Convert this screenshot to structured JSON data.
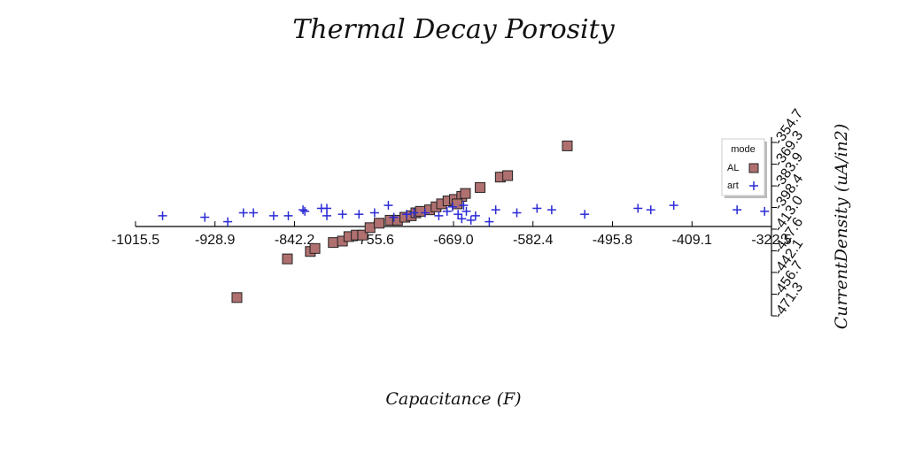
{
  "chart_data": {
    "type": "scatter",
    "title": "Thermal Decay Porosity",
    "xlabel": "Capacitance (F)",
    "ylabel": "CurrentDensity (uA/in2)",
    "xlim": [
      -1015.5,
      -322.5
    ],
    "ylim": [
      -471.3,
      -354.7
    ],
    "x_ticks": [
      "-1015.5",
      "-928.9",
      "-842.2",
      "-755.6",
      "-669.0",
      "-582.4",
      "-495.8",
      "-409.1",
      "-322.5"
    ],
    "y_ticks": [
      "-354.7",
      "-369.3",
      "-383.9",
      "-398.4",
      "-413.0",
      "-427.6",
      "-442.1",
      "-456.7",
      "-471.3"
    ],
    "legend": {
      "title": "mode",
      "position": "top-right"
    },
    "grid": false,
    "series": [
      {
        "name": "AL",
        "marker": "square",
        "color": "#b07070",
        "points": [
          [
            -905.0,
            -459.0
          ],
          [
            -850.0,
            -433.0
          ],
          [
            -825.0,
            -428.0
          ],
          [
            -820.0,
            -426.0
          ],
          [
            -800.0,
            -422.0
          ],
          [
            -790.0,
            -421.0
          ],
          [
            -783.0,
            -418.0
          ],
          [
            -775.0,
            -417.0
          ],
          [
            -768.0,
            -417.0
          ],
          [
            -760.0,
            -412.0
          ],
          [
            -750.0,
            -409.0
          ],
          [
            -738.0,
            -407.0
          ],
          [
            -730.0,
            -407.0
          ],
          [
            -722.0,
            -405.0
          ],
          [
            -715.0,
            -404.0
          ],
          [
            -710.0,
            -402.0
          ],
          [
            -705.0,
            -401.0
          ],
          [
            -695.0,
            -400.0
          ],
          [
            -688.0,
            -398.0
          ],
          [
            -682.0,
            -396.0
          ],
          [
            -675.0,
            -394.0
          ],
          [
            -668.0,
            -393.0
          ],
          [
            -660.0,
            -391.0
          ],
          [
            -656.0,
            -389.0
          ],
          [
            -665.0,
            -396.0
          ],
          [
            -640.0,
            -385.0
          ],
          [
            -618.0,
            -378.0
          ],
          [
            -610.0,
            -377.0
          ],
          [
            -545.0,
            -357.0
          ]
        ]
      },
      {
        "name": "art",
        "marker": "plus",
        "color": "#2b2bd6",
        "points": [
          [
            -986.0,
            -404.0
          ],
          [
            -940.0,
            -405.0
          ],
          [
            -915.0,
            -408.0
          ],
          [
            -898.0,
            -402.0
          ],
          [
            -887.0,
            -402.0
          ],
          [
            -865.0,
            -404.0
          ],
          [
            -849.0,
            -404.0
          ],
          [
            -833.0,
            -400.0
          ],
          [
            -831.0,
            -401.0
          ],
          [
            -813.0,
            -399.0
          ],
          [
            -807.0,
            -399.0
          ],
          [
            -807.0,
            -404.0
          ],
          [
            -790.0,
            -403.0
          ],
          [
            -772.0,
            -403.0
          ],
          [
            -755.0,
            -402.0
          ],
          [
            -740.0,
            -397.0
          ],
          [
            -734.0,
            -405.0
          ],
          [
            -720.0,
            -403.0
          ],
          [
            -712.0,
            -402.0
          ],
          [
            -700.0,
            -402.0
          ],
          [
            -685.0,
            -404.0
          ],
          [
            -676.0,
            -401.0
          ],
          [
            -670.0,
            -398.0
          ],
          [
            -664.0,
            -403.0
          ],
          [
            -660.0,
            -406.0
          ],
          [
            -658.0,
            -397.0
          ],
          [
            -655.0,
            -401.0
          ],
          [
            -650.0,
            -407.0
          ],
          [
            -645.0,
            -404.0
          ],
          [
            -630.0,
            -408.0
          ],
          [
            -623.0,
            -400.0
          ],
          [
            -600.0,
            -402.0
          ],
          [
            -578.0,
            -399.0
          ],
          [
            -562.0,
            -400.0
          ],
          [
            -526.0,
            -403.0
          ],
          [
            -468.0,
            -399.0
          ],
          [
            -454.0,
            -400.0
          ],
          [
            -429.0,
            -397.0
          ],
          [
            -360.0,
            -400.0
          ],
          [
            -330.0,
            -401.0
          ]
        ]
      }
    ]
  }
}
